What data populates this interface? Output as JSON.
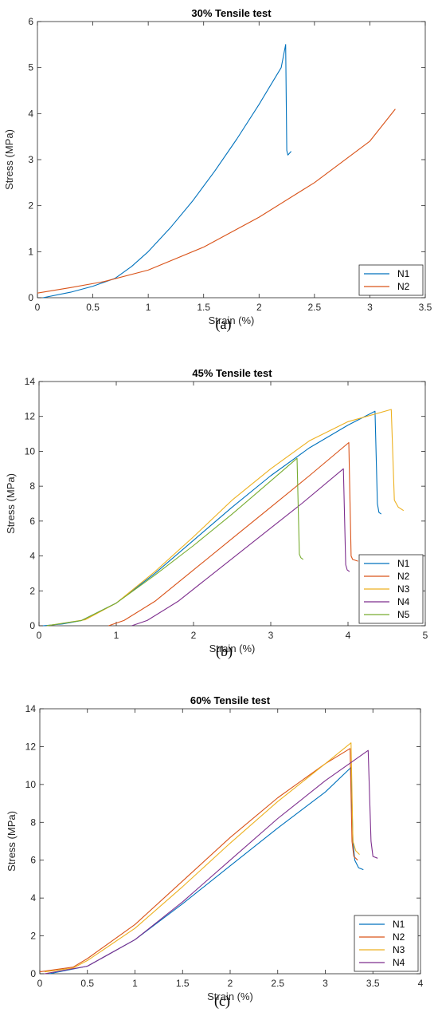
{
  "chart_data": [
    {
      "type": "line",
      "title": "30% Tensile test",
      "xlabel": "Strain (%)",
      "ylabel": "Stress (MPa)",
      "xlim": [
        0,
        3.5
      ],
      "ylim": [
        0,
        6
      ],
      "xticks": [
        0,
        0.5,
        1,
        1.5,
        2,
        2.5,
        3,
        3.5
      ],
      "yticks": [
        0,
        1,
        2,
        3,
        4,
        5,
        6
      ],
      "xtick_labels": [
        "0",
        "0.5",
        "1",
        "1.5",
        "2",
        "2.5",
        "3",
        "3.5"
      ],
      "ytick_labels": [
        "0",
        "1",
        "2",
        "3",
        "4",
        "5",
        "6"
      ],
      "legend_position": "bottom-right",
      "grid": false,
      "caption": "(a)",
      "series": [
        {
          "name": "N1",
          "color": "#0072BD",
          "x": [
            0.05,
            0.3,
            0.5,
            0.7,
            0.85,
            1.0,
            1.2,
            1.4,
            1.6,
            1.8,
            2.0,
            2.2,
            2.24,
            2.25,
            2.26,
            2.29
          ],
          "y": [
            0.0,
            0.12,
            0.25,
            0.42,
            0.68,
            1.0,
            1.52,
            2.1,
            2.75,
            3.45,
            4.2,
            5.0,
            5.5,
            3.2,
            3.1,
            3.18
          ]
        },
        {
          "name": "N2",
          "color": "#D95319",
          "x": [
            0.0,
            0.3,
            0.6,
            1.0,
            1.5,
            2.0,
            2.5,
            3.0,
            3.23
          ],
          "y": [
            0.1,
            0.22,
            0.35,
            0.6,
            1.1,
            1.75,
            2.5,
            3.4,
            4.1
          ]
        }
      ]
    },
    {
      "type": "line",
      "title": "45% Tensile test",
      "xlabel": "Strain (%)",
      "ylabel": "Stress (MPa)",
      "xlim": [
        0,
        5
      ],
      "ylim": [
        0,
        14
      ],
      "xticks": [
        0,
        1,
        2,
        3,
        4,
        5
      ],
      "yticks": [
        0,
        2,
        4,
        6,
        8,
        10,
        12,
        14
      ],
      "xtick_labels": [
        "0",
        "1",
        "2",
        "3",
        "4",
        "5"
      ],
      "ytick_labels": [
        "0",
        "2",
        "4",
        "6",
        "8",
        "10",
        "12",
        "14"
      ],
      "legend_position": "bottom-right",
      "grid": false,
      "caption": "(b)",
      "series": [
        {
          "name": "N1",
          "color": "#0072BD",
          "x": [
            0.05,
            0.3,
            0.55,
            1.0,
            1.5,
            2.0,
            2.5,
            3.0,
            3.5,
            4.0,
            4.35,
            4.38,
            4.4,
            4.43
          ],
          "y": [
            0.0,
            0.1,
            0.3,
            1.3,
            3.0,
            4.9,
            6.8,
            8.6,
            10.2,
            11.5,
            12.3,
            7.0,
            6.5,
            6.4
          ]
        },
        {
          "name": "N2",
          "color": "#D95319",
          "x": [
            0.9,
            1.1,
            1.5,
            2.0,
            2.5,
            3.0,
            3.5,
            4.01,
            4.04,
            4.06,
            4.13
          ],
          "y": [
            0.0,
            0.3,
            1.4,
            3.2,
            5.0,
            6.8,
            8.6,
            10.5,
            4.0,
            3.8,
            3.7
          ]
        },
        {
          "name": "N3",
          "color": "#EDB120",
          "x": [
            0.1,
            0.6,
            1.0,
            1.5,
            2.0,
            2.5,
            3.0,
            3.5,
            4.0,
            4.56,
            4.6,
            4.65,
            4.72
          ],
          "y": [
            0.0,
            0.35,
            1.3,
            3.1,
            5.1,
            7.2,
            9.0,
            10.6,
            11.7,
            12.4,
            7.2,
            6.8,
            6.6
          ]
        },
        {
          "name": "N4",
          "color": "#7E2F8E",
          "x": [
            1.2,
            1.4,
            1.8,
            2.2,
            2.6,
            3.0,
            3.4,
            3.94,
            3.97,
            3.99,
            4.02
          ],
          "y": [
            0.0,
            0.3,
            1.4,
            2.8,
            4.2,
            5.6,
            7.0,
            9.0,
            3.5,
            3.2,
            3.1
          ]
        },
        {
          "name": "N5",
          "color": "#77AC30",
          "x": [
            0.1,
            0.55,
            1.0,
            1.5,
            2.0,
            2.5,
            3.0,
            3.34,
            3.37,
            3.39,
            3.42
          ],
          "y": [
            0.0,
            0.3,
            1.3,
            2.9,
            4.6,
            6.4,
            8.3,
            9.6,
            4.1,
            3.9,
            3.8
          ]
        }
      ]
    },
    {
      "type": "line",
      "title": "60% Tensile test",
      "xlabel": "Strain (%)",
      "ylabel": "Stress (MPa)",
      "xlim": [
        0,
        4
      ],
      "ylim": [
        0,
        14
      ],
      "xticks": [
        0,
        0.5,
        1,
        1.5,
        2,
        2.5,
        3,
        3.5,
        4
      ],
      "yticks": [
        0,
        2,
        4,
        6,
        8,
        10,
        12,
        14
      ],
      "xtick_labels": [
        "0",
        "0.5",
        "1",
        "1.5",
        "2",
        "2.5",
        "3",
        "3.5",
        "4"
      ],
      "ytick_labels": [
        "0",
        "2",
        "4",
        "6",
        "8",
        "10",
        "12",
        "14"
      ],
      "legend_position": "bottom-right",
      "grid": false,
      "caption": "(c)",
      "series": [
        {
          "name": "N1",
          "color": "#0072BD",
          "x": [
            0.1,
            0.5,
            1.0,
            1.5,
            2.0,
            2.5,
            3.0,
            3.27,
            3.29,
            3.31,
            3.35,
            3.4
          ],
          "y": [
            0.0,
            0.4,
            1.8,
            3.7,
            5.7,
            7.7,
            9.6,
            10.9,
            7.0,
            6.0,
            5.6,
            5.5
          ]
        },
        {
          "name": "N2",
          "color": "#D95319",
          "x": [
            0.0,
            0.35,
            0.5,
            1.0,
            1.5,
            2.0,
            2.5,
            3.0,
            3.26,
            3.28,
            3.3,
            3.34
          ],
          "y": [
            0.1,
            0.35,
            0.8,
            2.6,
            4.9,
            7.2,
            9.3,
            11.1,
            11.9,
            7.0,
            6.2,
            6.0
          ]
        },
        {
          "name": "N3",
          "color": "#EDB120",
          "x": [
            0.05,
            0.35,
            0.5,
            1.0,
            1.5,
            2.0,
            2.5,
            3.0,
            3.27,
            3.29,
            3.32,
            3.36
          ],
          "y": [
            0.1,
            0.3,
            0.7,
            2.4,
            4.6,
            6.9,
            9.1,
            11.1,
            12.2,
            7.0,
            6.5,
            6.3
          ]
        },
        {
          "name": "N4",
          "color": "#7E2F8E",
          "x": [
            0.05,
            0.5,
            1.0,
            1.5,
            2.0,
            2.5,
            3.0,
            3.45,
            3.48,
            3.5,
            3.55
          ],
          "y": [
            0.0,
            0.4,
            1.8,
            3.8,
            6.0,
            8.2,
            10.2,
            11.8,
            7.0,
            6.2,
            6.1
          ]
        }
      ]
    }
  ]
}
